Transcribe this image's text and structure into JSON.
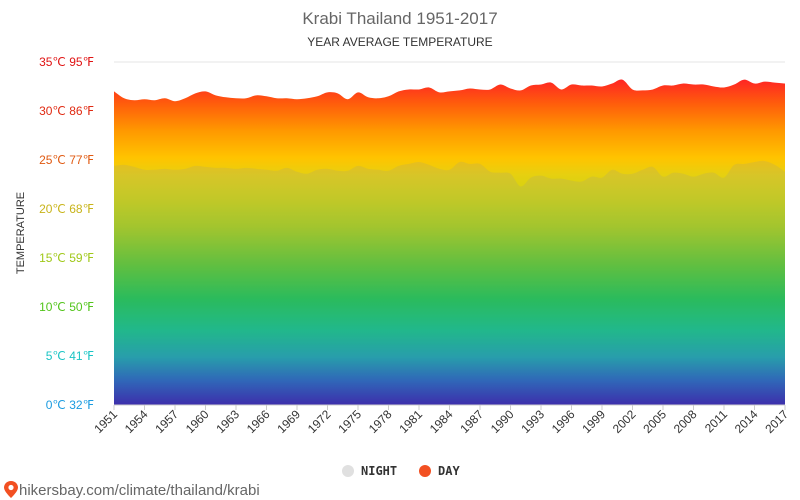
{
  "chart_data": {
    "type": "area",
    "title": "Krabi Thailand 1951-2017",
    "subtitle": "YEAR AVERAGE TEMPERATURE",
    "ylabel": "TEMPERATURE",
    "xlabel": "",
    "ylim": [
      0,
      35
    ],
    "xlim": [
      1951,
      2017
    ],
    "grid": true,
    "legend_position": "bottom",
    "y_ticks": [
      {
        "value": 0,
        "label": "0℃ 32℉",
        "color": "#1a9be0"
      },
      {
        "value": 5,
        "label": "5℃ 41℉",
        "color": "#19c4c4"
      },
      {
        "value": 10,
        "label": "10℃ 50℉",
        "color": "#52c41a"
      },
      {
        "value": 15,
        "label": "15℃ 59℉",
        "color": "#a0c81a"
      },
      {
        "value": 20,
        "label": "20℃ 68℉",
        "color": "#c8b41a"
      },
      {
        "value": 25,
        "label": "25℃ 77℉",
        "color": "#e05a12"
      },
      {
        "value": 30,
        "label": "30℃ 86℉",
        "color": "#e02a12"
      },
      {
        "value": 35,
        "label": "35℃ 95℉",
        "color": "#e01212"
      }
    ],
    "x_ticks": [
      1951,
      1954,
      1957,
      1960,
      1963,
      1966,
      1969,
      1972,
      1975,
      1978,
      1981,
      1984,
      1987,
      1990,
      1993,
      1996,
      1999,
      2002,
      2005,
      2008,
      2011,
      2014,
      2017
    ],
    "x": [
      1951,
      1952,
      1953,
      1954,
      1955,
      1956,
      1957,
      1958,
      1959,
      1960,
      1961,
      1962,
      1963,
      1964,
      1965,
      1966,
      1967,
      1968,
      1969,
      1970,
      1971,
      1972,
      1973,
      1974,
      1975,
      1976,
      1977,
      1978,
      1979,
      1980,
      1981,
      1982,
      1983,
      1984,
      1985,
      1986,
      1987,
      1988,
      1989,
      1990,
      1991,
      1992,
      1993,
      1994,
      1995,
      1996,
      1997,
      1998,
      1999,
      2000,
      2001,
      2002,
      2003,
      2004,
      2005,
      2006,
      2007,
      2008,
      2009,
      2010,
      2011,
      2012,
      2013,
      2014,
      2015,
      2016,
      2017
    ],
    "series": [
      {
        "name": "NIGHT",
        "color": "#e0e0e0",
        "values": [
          24.4,
          24.5,
          24.3,
          24.0,
          24.0,
          24.1,
          24.0,
          24.1,
          24.4,
          24.3,
          24.2,
          24.2,
          24.1,
          24.2,
          24.1,
          24.0,
          23.9,
          24.2,
          23.8,
          23.6,
          24.0,
          24.1,
          23.9,
          23.9,
          24.4,
          24.1,
          24.0,
          23.9,
          24.4,
          24.6,
          24.8,
          24.5,
          24.1,
          24.0,
          24.8,
          24.6,
          24.6,
          23.8,
          23.7,
          23.6,
          22.3,
          23.2,
          23.4,
          23.1,
          23.1,
          22.9,
          22.8,
          23.3,
          23.2,
          24.0,
          23.6,
          23.6,
          24.0,
          24.3,
          23.3,
          23.7,
          23.6,
          23.3,
          23.6,
          23.7,
          23.2,
          24.5,
          24.6,
          24.8,
          24.9,
          24.5,
          23.8
        ]
      },
      {
        "name": "DAY",
        "color": "#f25022",
        "values": [
          32.0,
          31.3,
          31.1,
          31.2,
          31.1,
          31.3,
          31.0,
          31.3,
          31.8,
          32.0,
          31.6,
          31.4,
          31.3,
          31.3,
          31.6,
          31.5,
          31.3,
          31.3,
          31.2,
          31.3,
          31.5,
          31.9,
          31.8,
          31.2,
          31.9,
          31.4,
          31.3,
          31.5,
          32.0,
          32.2,
          32.2,
          32.4,
          31.9,
          32.0,
          32.1,
          32.3,
          32.2,
          32.2,
          32.7,
          32.3,
          32.1,
          32.6,
          32.7,
          32.9,
          32.2,
          32.7,
          32.6,
          32.6,
          32.5,
          32.8,
          33.2,
          32.2,
          32.1,
          32.2,
          32.6,
          32.6,
          32.8,
          32.7,
          32.7,
          32.5,
          32.4,
          32.7,
          33.2,
          32.8,
          33.0,
          32.9,
          32.8
        ]
      }
    ]
  },
  "legend": [
    {
      "label": "NIGHT",
      "color": "#e0e0e0"
    },
    {
      "label": "DAY",
      "color": "#f25022"
    }
  ],
  "footer": {
    "text": "hikersbay.com/climate/thailand/krabi",
    "icon": "location-pin-icon",
    "icon_color": "#f25022"
  }
}
